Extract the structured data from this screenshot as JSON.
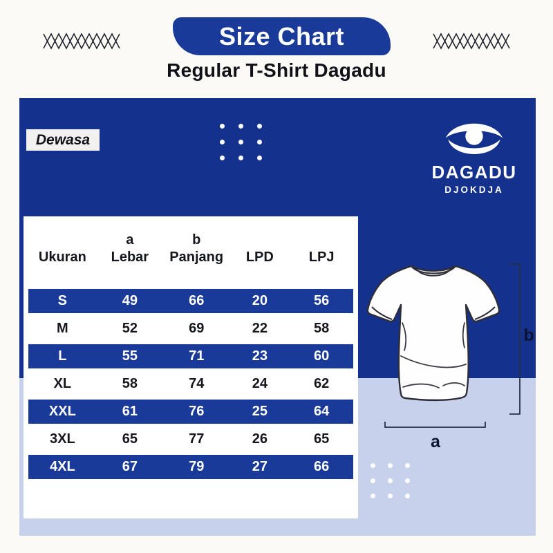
{
  "page": {
    "title": "Size Chart",
    "subtitle": "Regular T-Shirt Dagadu"
  },
  "panel": {
    "category_label": "Dewasa",
    "brand_name": "DAGADU",
    "brand_subname": "DJOKDJA"
  },
  "diagram": {
    "width_label": "a",
    "height_label": "b"
  },
  "chart_data": {
    "type": "table",
    "title": "Size Chart",
    "columns": [
      "Ukuran",
      "a Lebar",
      "b Panjang",
      "LPD",
      "LPJ"
    ],
    "header": [
      {
        "sup": "",
        "label": "Ukuran"
      },
      {
        "sup": "a",
        "label": "Lebar"
      },
      {
        "sup": "b",
        "label": "Panjang"
      },
      {
        "sup": "",
        "label": "LPD"
      },
      {
        "sup": "",
        "label": "LPJ"
      }
    ],
    "rows": [
      {
        "cells": [
          "S",
          "49",
          "66",
          "20",
          "56"
        ],
        "highlight": true
      },
      {
        "cells": [
          "M",
          "52",
          "69",
          "22",
          "58"
        ],
        "highlight": false
      },
      {
        "cells": [
          "L",
          "55",
          "71",
          "23",
          "60"
        ],
        "highlight": true
      },
      {
        "cells": [
          "XL",
          "58",
          "74",
          "24",
          "62"
        ],
        "highlight": false
      },
      {
        "cells": [
          "XXL",
          "61",
          "76",
          "25",
          "64"
        ],
        "highlight": true
      },
      {
        "cells": [
          "3XL",
          "65",
          "77",
          "26",
          "65"
        ],
        "highlight": false
      },
      {
        "cells": [
          "4XL",
          "67",
          "79",
          "27",
          "66"
        ],
        "highlight": true
      }
    ]
  },
  "colors": {
    "banner_blue": "#1A3A99",
    "panel_blue": "#14318D",
    "row_blue": "#1A3A99",
    "lavender": "#C8D1EC",
    "ink": "#101218",
    "label_navy": "#0A1430"
  }
}
